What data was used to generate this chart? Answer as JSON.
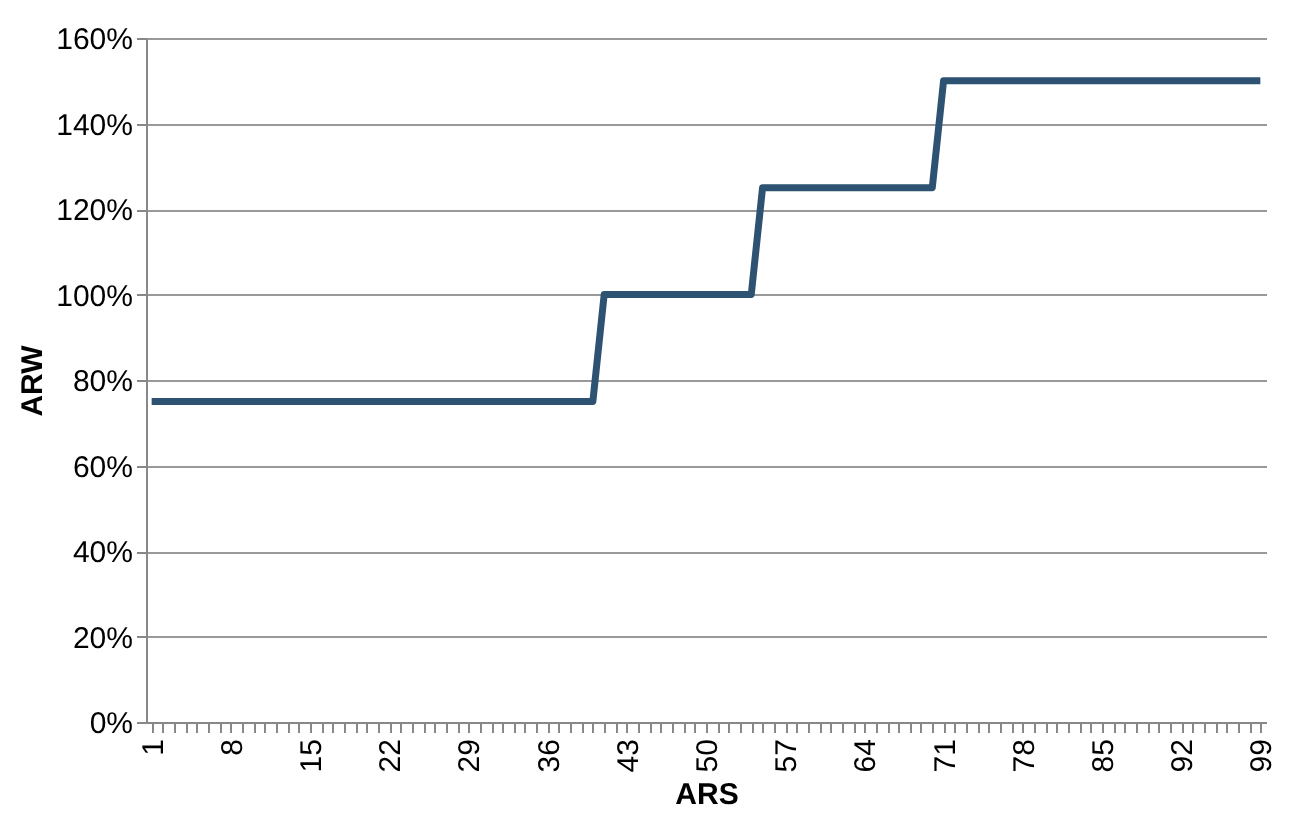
{
  "chart_data": {
    "type": "step",
    "xlabel": "ARS",
    "ylabel": "ARW",
    "categories": [
      "1",
      null,
      null,
      null,
      null,
      null,
      null,
      "8",
      null,
      null,
      null,
      null,
      null,
      null,
      "15",
      null,
      null,
      null,
      null,
      null,
      null,
      "22",
      null,
      null,
      null,
      null,
      null,
      null,
      "29",
      null,
      null,
      null,
      null,
      null,
      null,
      "36",
      null,
      null,
      null,
      null,
      null,
      null,
      "43",
      null,
      null,
      null,
      null,
      null,
      null,
      "50",
      null,
      null,
      null,
      null,
      null,
      null,
      "57",
      null,
      null,
      null,
      null,
      null,
      null,
      "64",
      null,
      null,
      null,
      null,
      null,
      null,
      "71",
      null,
      null,
      null,
      null,
      null,
      null,
      "78",
      null,
      null,
      null,
      null,
      null,
      null,
      "85",
      null,
      null,
      null,
      null,
      null,
      null,
      "92",
      null,
      null,
      null,
      null,
      null,
      null,
      "99"
    ],
    "series": [
      {
        "color": "#2e5372",
        "values": [
          75,
          75,
          75,
          75,
          75,
          75,
          75,
          75,
          75,
          75,
          75,
          75,
          75,
          75,
          75,
          75,
          75,
          75,
          75,
          75,
          75,
          75,
          75,
          75,
          75,
          75,
          75,
          75,
          75,
          75,
          75,
          75,
          75,
          75,
          75,
          75,
          75,
          75,
          75,
          75,
          100,
          100,
          100,
          100,
          100,
          100,
          100,
          100,
          100,
          100,
          100,
          100,
          100,
          100,
          125,
          125,
          125,
          125,
          125,
          125,
          125,
          125,
          125,
          125,
          125,
          125,
          125,
          125,
          125,
          125,
          150,
          150,
          150,
          150,
          150,
          150,
          150,
          150,
          150,
          150,
          150,
          150,
          150,
          150,
          150,
          150,
          150,
          150,
          150,
          150,
          150,
          150,
          150,
          150,
          150,
          150,
          150,
          150,
          150
        ]
      }
    ],
    "ylim": [
      0,
      160
    ],
    "yticks": [
      {
        "value": 0,
        "label": "0%"
      },
      {
        "value": 20,
        "label": "20%"
      },
      {
        "value": 40,
        "label": "40%"
      },
      {
        "value": 60,
        "label": "60%"
      },
      {
        "value": 80,
        "label": "80%"
      },
      {
        "value": 100,
        "label": "100%"
      },
      {
        "value": 120,
        "label": "120%"
      },
      {
        "value": 140,
        "label": "140%"
      },
      {
        "value": 160,
        "label": "160%"
      }
    ],
    "grid": "y",
    "marker": "none",
    "line_style": "solid"
  }
}
